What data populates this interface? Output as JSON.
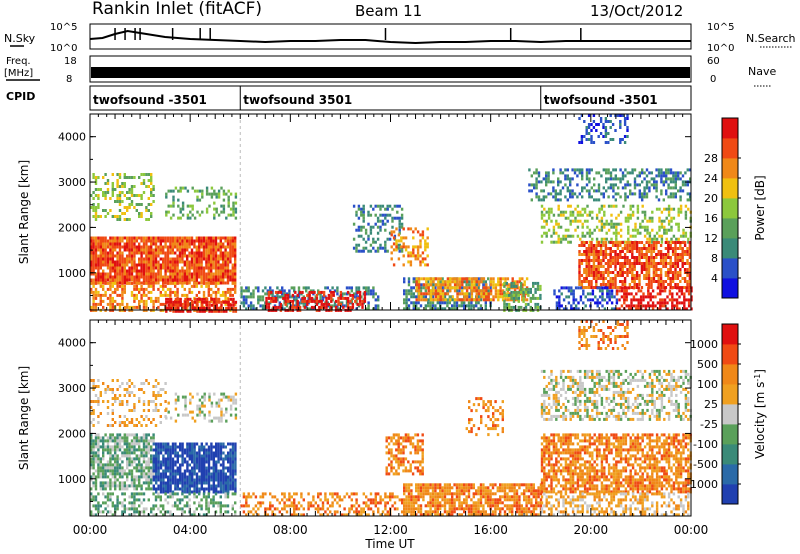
{
  "header": {
    "station": "Rankin Inlet (fitACF)",
    "beam": "Beam 11",
    "date": "13/Oct/2012"
  },
  "summary": {
    "nsky_label": "N.Sky",
    "nsky_ticks": [
      "10^5",
      "10^0"
    ],
    "nsearch_label": "N.Search",
    "nsearch_ticks": [
      "10^5",
      "10^0"
    ],
    "freq_label": "Freq.",
    "freq_unit": "[MHz]",
    "freq_ticks": [
      "18",
      "8"
    ],
    "nave_label": "Nave",
    "nave_ticks": [
      "60",
      "0"
    ],
    "cpid_label": "CPID",
    "cpid_segments": [
      {
        "label": "twofsound -3501",
        "start": 0.0,
        "end": 6.0
      },
      {
        "label": "twofsound 3501",
        "start": 6.0,
        "end": 18.0
      },
      {
        "label": "twofsound -3501",
        "start": 18.0,
        "end": 24.0
      }
    ]
  },
  "chart_data": [
    {
      "type": "heatmap",
      "title": "",
      "xlabel": "Time UT",
      "ylabel": "Slant Range [km]",
      "xlim": [
        0,
        24
      ],
      "ylim": [
        180,
        4500
      ],
      "x_ticks": [
        0,
        4,
        8,
        12,
        16,
        20,
        24
      ],
      "x_tick_labels": [
        "00:00",
        "04:00",
        "08:00",
        "12:00",
        "16:00",
        "20:00",
        "00:00"
      ],
      "y_ticks": [
        1000,
        2000,
        3000,
        4000
      ],
      "y_tick_labels": [
        "1000",
        "2000",
        "3000",
        "4000"
      ],
      "colorbar": {
        "label": "Power [dB]",
        "tick_labels": [
          "4",
          "8",
          "12",
          "16",
          "20",
          "24",
          "28"
        ],
        "colors": [
          "#1010e0",
          "#2a50c8",
          "#3a8a78",
          "#5aa05a",
          "#8cc83c",
          "#f0c010",
          "#f08818",
          "#f04a14",
          "#e01010"
        ]
      },
      "regions": [
        {
          "t0": 0.0,
          "t1": 5.8,
          "r0": 800,
          "r1": 1800,
          "level": 7,
          "density": 0.9
        },
        {
          "t0": 0.0,
          "t1": 5.8,
          "r0": 180,
          "r1": 800,
          "level": 6,
          "density": 0.55
        },
        {
          "t0": 0.0,
          "t1": 2.5,
          "r0": 2200,
          "r1": 3200,
          "level": 4,
          "density": 0.35
        },
        {
          "t0": 3.0,
          "t1": 5.8,
          "r0": 2200,
          "r1": 2900,
          "level": 3,
          "density": 0.3
        },
        {
          "t0": 3.0,
          "t1": 5.8,
          "r0": 180,
          "r1": 450,
          "level": 8,
          "density": 0.75
        },
        {
          "t0": 6.0,
          "t1": 11.5,
          "r0": 180,
          "r1": 700,
          "level": 2,
          "density": 0.5
        },
        {
          "t0": 7.0,
          "t1": 11.0,
          "r0": 180,
          "r1": 600,
          "level": 8,
          "density": 0.55
        },
        {
          "t0": 10.5,
          "t1": 12.5,
          "r0": 1500,
          "r1": 2500,
          "level": 2,
          "density": 0.35
        },
        {
          "t0": 12.0,
          "t1": 13.5,
          "r0": 1200,
          "r1": 2000,
          "level": 6,
          "density": 0.4
        },
        {
          "t0": 12.5,
          "t1": 16.0,
          "r0": 180,
          "r1": 900,
          "level": 2,
          "density": 0.6
        },
        {
          "t0": 13.0,
          "t1": 17.5,
          "r0": 400,
          "r1": 900,
          "level": 6,
          "density": 0.7
        },
        {
          "t0": 16.5,
          "t1": 18.0,
          "r0": 180,
          "r1": 800,
          "level": 3,
          "density": 0.6
        },
        {
          "t0": 17.5,
          "t1": 24.0,
          "r0": 2600,
          "r1": 3300,
          "level": 2,
          "density": 0.45
        },
        {
          "t0": 18.0,
          "t1": 24.0,
          "r0": 1700,
          "r1": 2500,
          "level": 4,
          "density": 0.4
        },
        {
          "t0": 19.5,
          "t1": 24.0,
          "r0": 700,
          "r1": 1700,
          "level": 7,
          "density": 0.75
        },
        {
          "t0": 18.5,
          "t1": 21.0,
          "r0": 180,
          "r1": 700,
          "level": 1,
          "density": 0.45
        },
        {
          "t0": 21.0,
          "t1": 24.0,
          "r0": 180,
          "r1": 700,
          "level": 8,
          "density": 0.6
        },
        {
          "t0": 19.5,
          "t1": 21.5,
          "r0": 3900,
          "r1": 4500,
          "level": 1,
          "density": 0.35
        }
      ]
    },
    {
      "type": "heatmap",
      "title": "",
      "xlabel": "Time UT",
      "ylabel": "Slant Range [km]",
      "xlim": [
        0,
        24
      ],
      "ylim": [
        180,
        4500
      ],
      "x_ticks": [
        0,
        4,
        8,
        12,
        16,
        20,
        24
      ],
      "x_tick_labels": [
        "00:00",
        "04:00",
        "08:00",
        "12:00",
        "16:00",
        "20:00",
        "00:00"
      ],
      "y_ticks": [
        1000,
        2000,
        3000,
        4000
      ],
      "y_tick_labels": [
        "1000",
        "2000",
        "3000",
        "4000"
      ],
      "colorbar": {
        "label": "Velocity [m s^-1]",
        "tick_labels": [
          "1000",
          "500",
          "100",
          "25",
          "-25",
          "-100",
          "-500",
          "-1000"
        ],
        "colors": [
          "#2040b0",
          "#2a6aa8",
          "#3a8a78",
          "#5aa05a",
          "#c8c8c8",
          "#f0a020",
          "#f08818",
          "#f04a14",
          "#e01010"
        ]
      },
      "regions": [
        {
          "t0": 0.0,
          "t1": 2.5,
          "r0": 800,
          "r1": 2000,
          "level": 3,
          "density": 0.75
        },
        {
          "t0": 2.5,
          "t1": 5.8,
          "r0": 700,
          "r1": 1800,
          "level": 0,
          "density": 0.85
        },
        {
          "t0": 0.0,
          "t1": 5.8,
          "r0": 180,
          "r1": 700,
          "level": 3,
          "density": 0.45
        },
        {
          "t0": 0.0,
          "t1": 3.0,
          "r0": 2200,
          "r1": 3200,
          "level": 5,
          "density": 0.3
        },
        {
          "t0": 3.0,
          "t1": 5.8,
          "r0": 2300,
          "r1": 2900,
          "level": 4,
          "density": 0.3
        },
        {
          "t0": 6.0,
          "t1": 12.5,
          "r0": 180,
          "r1": 700,
          "level": 6,
          "density": 0.4
        },
        {
          "t0": 11.8,
          "t1": 13.3,
          "r0": 1100,
          "r1": 2000,
          "level": 6,
          "density": 0.55
        },
        {
          "t0": 12.5,
          "t1": 18.0,
          "r0": 180,
          "r1": 900,
          "level": 6,
          "density": 0.75
        },
        {
          "t0": 15.0,
          "t1": 16.5,
          "r0": 2000,
          "r1": 2800,
          "level": 6,
          "density": 0.3
        },
        {
          "t0": 18.0,
          "t1": 24.0,
          "r0": 2300,
          "r1": 3400,
          "level": 4,
          "density": 0.5
        },
        {
          "t0": 18.0,
          "t1": 24.0,
          "r0": 700,
          "r1": 2000,
          "level": 6,
          "density": 0.7
        },
        {
          "t0": 18.0,
          "t1": 24.0,
          "r0": 180,
          "r1": 700,
          "level": 5,
          "density": 0.5
        },
        {
          "t0": 19.5,
          "t1": 21.5,
          "r0": 3900,
          "r1": 4500,
          "level": 6,
          "density": 0.35
        }
      ]
    },
    {
      "type": "line",
      "title": "",
      "series": [
        {
          "name": "N.Sky",
          "x": [
            0,
            0.5,
            1,
            1.5,
            2,
            3,
            4,
            5,
            6,
            7,
            8,
            9,
            10,
            11,
            12,
            13,
            14,
            15,
            16,
            17,
            18,
            19,
            20,
            21,
            22,
            23,
            24
          ],
          "values": [
            0.45,
            0.5,
            0.7,
            0.85,
            0.75,
            0.55,
            0.45,
            0.4,
            0.35,
            0.3,
            0.35,
            0.35,
            0.4,
            0.4,
            0.3,
            0.25,
            0.3,
            0.3,
            0.35,
            0.35,
            0.3,
            0.35,
            0.35,
            0.35,
            0.35,
            0.35,
            0.35
          ]
        }
      ],
      "xlim": [
        0,
        24
      ]
    }
  ]
}
